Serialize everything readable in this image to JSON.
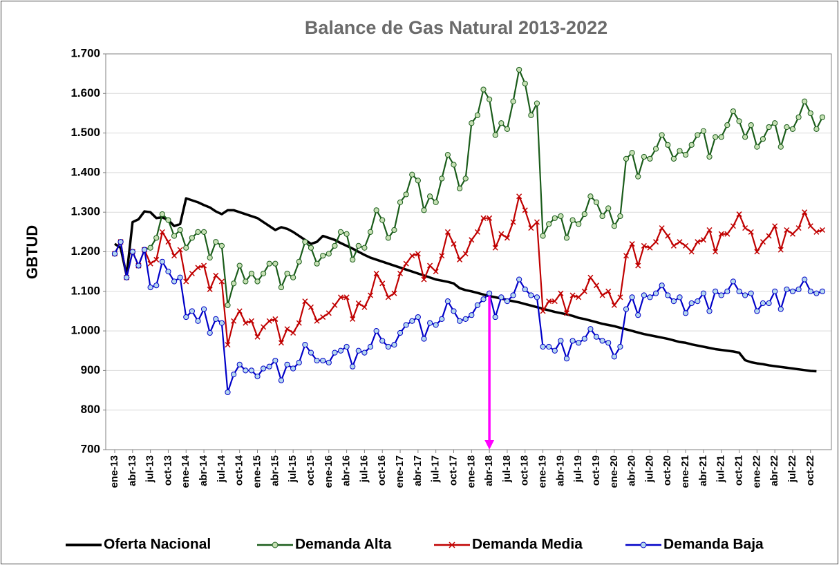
{
  "chart_data": {
    "type": "line",
    "title": "Balance de Gas Natural 2013-2022",
    "y_label": "GBTUD",
    "categories": [
      "ene-13",
      null,
      null,
      "abr-13",
      null,
      null,
      "jul-13",
      null,
      null,
      "oct-13",
      null,
      null,
      "ene-14",
      null,
      null,
      "abr-14",
      null,
      null,
      "jul-14",
      null,
      null,
      "oct-14",
      null,
      null,
      "ene-15",
      null,
      null,
      "abr-15",
      null,
      null,
      "jul-15",
      null,
      null,
      "oct-15",
      null,
      null,
      "ene-16",
      null,
      null,
      "abr-16",
      null,
      null,
      "jul-16",
      null,
      null,
      "oct-16",
      null,
      null,
      "ene-17",
      null,
      null,
      "abr-17",
      null,
      null,
      "jul-17",
      null,
      null,
      "oct-17",
      null,
      null,
      "ene-18",
      null,
      null,
      "abr-18",
      null,
      null,
      "jul-18",
      null,
      null,
      "oct-18",
      null,
      null,
      "ene-19",
      null,
      null,
      "abr-19",
      null,
      null,
      "jul-19",
      null,
      null,
      "oct-19",
      null,
      null,
      "ene-20",
      null,
      null,
      "abr-20",
      null,
      null,
      "jul-20",
      null,
      null,
      "oct-20",
      null,
      null,
      "ene-21",
      null,
      null,
      "abr-21",
      null,
      null,
      "jul-21",
      null,
      null,
      "oct-21",
      null,
      null,
      "ene-22",
      null,
      null,
      "abr-22",
      null,
      null,
      "jul-22",
      null,
      null,
      "oct-22",
      null,
      null
    ],
    "series": [
      {
        "name": "Oferta Nacional",
        "color": "#000000",
        "marker": "none",
        "values": [
          1220,
          1210,
          1140,
          1275,
          1282,
          1302,
          1300,
          1285,
          1287,
          1280,
          1265,
          1270,
          1335,
          1330,
          1325,
          1318,
          1312,
          1302,
          1295,
          1305,
          1305,
          1300,
          1295,
          1290,
          1285,
          1275,
          1265,
          1255,
          1262,
          1258,
          1250,
          1240,
          1230,
          1220,
          1225,
          1240,
          1235,
          1230,
          1222,
          1215,
          1208,
          1200,
          1192,
          1185,
          1180,
          1175,
          1170,
          1165,
          1160,
          1155,
          1150,
          1145,
          1140,
          1135,
          1130,
          1127,
          1124,
          1120,
          1108,
          1103,
          1100,
          1096,
          1092,
          1088,
          1085,
          1082,
          1078,
          1075,
          1072,
          1068,
          1064,
          1060,
          1056,
          1052,
          1048,
          1045,
          1042,
          1038,
          1033,
          1030,
          1026,
          1022,
          1018,
          1015,
          1012,
          1008,
          1004,
          1000,
          996,
          992,
          989,
          986,
          983,
          980,
          976,
          972,
          970,
          966,
          963,
          960,
          957,
          954,
          952,
          950,
          948,
          945,
          926,
          921,
          918,
          916,
          913,
          911,
          909,
          907,
          905,
          903,
          901,
          899,
          898,
          null
        ]
      },
      {
        "name": "Demanda Alta",
        "color": "#1a5c1a",
        "marker": "circle",
        "marker_fill": "#c6e0b4",
        "values": [
          1195,
          1225,
          1135,
          1200,
          1165,
          1205,
          1210,
          1235,
          1295,
          1280,
          1240,
          1255,
          1210,
          1235,
          1250,
          1250,
          1185,
          1225,
          1215,
          1065,
          1120,
          1165,
          1125,
          1145,
          1125,
          1145,
          1170,
          1170,
          1110,
          1145,
          1135,
          1175,
          1225,
          1210,
          1170,
          1190,
          1195,
          1215,
          1250,
          1245,
          1180,
          1215,
          1210,
          1250,
          1305,
          1280,
          1235,
          1255,
          1325,
          1345,
          1395,
          1380,
          1305,
          1340,
          1325,
          1385,
          1445,
          1420,
          1360,
          1385,
          1525,
          1545,
          1610,
          1585,
          1495,
          1525,
          1510,
          1580,
          1660,
          1625,
          1545,
          1575,
          1240,
          1270,
          1285,
          1290,
          1235,
          1280,
          1270,
          1295,
          1340,
          1325,
          1290,
          1310,
          1265,
          1290,
          1435,
          1450,
          1390,
          1440,
          1435,
          1460,
          1495,
          1470,
          1435,
          1455,
          1445,
          1470,
          1495,
          1505,
          1440,
          1490,
          1490,
          1520,
          1555,
          1530,
          1490,
          1520,
          1465,
          1485,
          1515,
          1525,
          1465,
          1515,
          1510,
          1540,
          1580,
          1550,
          1510,
          1540
        ]
      },
      {
        "name": "Demanda Media",
        "color": "#c00000",
        "marker": "cross",
        "values": [
          1195,
          1225,
          1135,
          1200,
          1165,
          1205,
          1170,
          1180,
          1250,
          1225,
          1190,
          1205,
          1125,
          1145,
          1160,
          1165,
          1105,
          1140,
          1125,
          965,
          1025,
          1050,
          1020,
          1025,
          985,
          1010,
          1025,
          1030,
          970,
          1005,
          995,
          1020,
          1075,
          1060,
          1025,
          1035,
          1045,
          1065,
          1085,
          1085,
          1030,
          1070,
          1060,
          1090,
          1145,
          1120,
          1085,
          1095,
          1145,
          1170,
          1190,
          1195,
          1130,
          1165,
          1150,
          1190,
          1250,
          1220,
          1180,
          1195,
          1230,
          1250,
          1285,
          1285,
          1210,
          1245,
          1235,
          1275,
          1340,
          1305,
          1260,
          1275,
          1050,
          1075,
          1075,
          1095,
          1045,
          1090,
          1085,
          1100,
          1135,
          1115,
          1090,
          1100,
          1065,
          1085,
          1190,
          1220,
          1165,
          1215,
          1210,
          1225,
          1260,
          1240,
          1215,
          1225,
          1215,
          1200,
          1225,
          1230,
          1255,
          1200,
          1245,
          1245,
          1265,
          1295,
          1260,
          1250,
          1200,
          1225,
          1240,
          1265,
          1205,
          1255,
          1245,
          1260,
          1300,
          1265,
          1250,
          1255
        ]
      },
      {
        "name": "Demanda Baja",
        "color": "#0000c8",
        "marker": "circle",
        "marker_fill": "#b4d7ee",
        "values": [
          1195,
          1225,
          1135,
          1200,
          1165,
          1205,
          1110,
          1115,
          1175,
          1150,
          1125,
          1135,
          1035,
          1050,
          1025,
          1055,
          995,
          1030,
          1020,
          845,
          890,
          915,
          900,
          900,
          885,
          905,
          910,
          925,
          875,
          915,
          905,
          920,
          965,
          945,
          925,
          925,
          920,
          945,
          950,
          960,
          910,
          950,
          945,
          960,
          1000,
          975,
          960,
          965,
          995,
          1015,
          1025,
          1035,
          980,
          1020,
          1015,
          1030,
          1075,
          1050,
          1025,
          1030,
          1040,
          1065,
          1080,
          1095,
          1035,
          1085,
          1075,
          1090,
          1130,
          1105,
          1090,
          1085,
          960,
          960,
          950,
          975,
          930,
          975,
          970,
          980,
          1005,
          985,
          975,
          970,
          935,
          960,
          1055,
          1085,
          1040,
          1090,
          1085,
          1095,
          1115,
          1090,
          1075,
          1085,
          1045,
          1070,
          1075,
          1095,
          1050,
          1100,
          1090,
          1100,
          1125,
          1100,
          1090,
          1095,
          1050,
          1070,
          1070,
          1100,
          1055,
          1105,
          1100,
          1105,
          1130,
          1100,
          1095,
          1100
        ]
      }
    ],
    "ylim": [
      700,
      1700
    ],
    "yticks": [
      700,
      800,
      900,
      {
        "value": 1000,
        "label": "1.000"
      },
      {
        "value": 1100,
        "label": "1.100"
      },
      {
        "value": 1200,
        "label": "1.200"
      },
      {
        "value": 1300,
        "label": "1.300"
      },
      {
        "value": 1400,
        "label": "1.400"
      },
      {
        "value": 1500,
        "label": "1.500"
      },
      {
        "value": 1600,
        "label": "1.600"
      },
      {
        "value": 1700,
        "label": "1.700"
      }
    ],
    "grid": true,
    "legend": "bottom"
  }
}
